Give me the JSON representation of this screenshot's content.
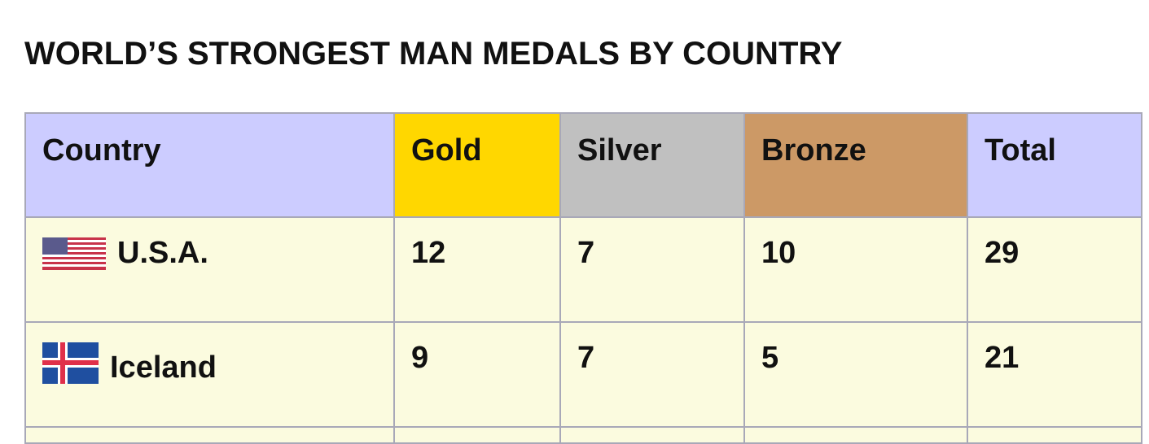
{
  "title": "WORLD’S STRONGEST MAN MEDALS BY COUNTRY",
  "colors": {
    "header": "#ccccff",
    "gold": "#ffd700",
    "silver": "#c0c0c0",
    "bronze": "#cc9966",
    "row": "#fbfbdf"
  },
  "headers": [
    "Country",
    "Gold",
    "Silver",
    "Bronze",
    "Total"
  ],
  "rows": [
    {
      "flag": "usa-flag-icon",
      "country": "U.S.A.",
      "gold": "12",
      "silver": "7",
      "bronze": "10",
      "total": "29"
    },
    {
      "flag": "iceland-flag-icon",
      "country": "Iceland",
      "gold": "9",
      "silver": "7",
      "bronze": "5",
      "total": "21"
    }
  ]
}
